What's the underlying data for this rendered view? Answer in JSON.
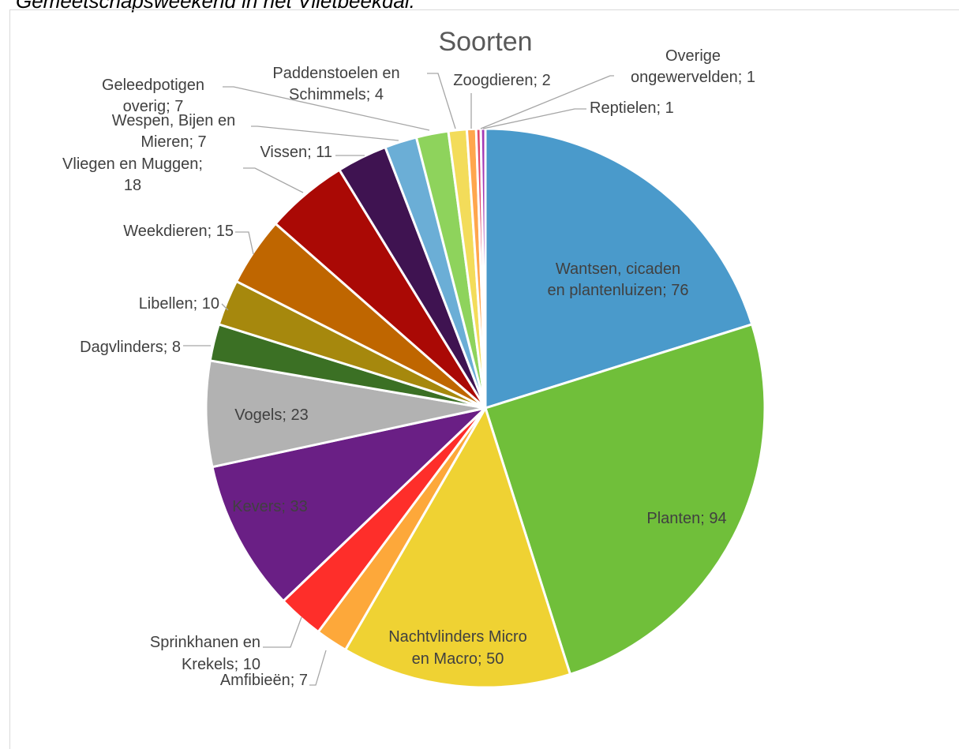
{
  "page": {
    "caption": "Gemeetschapsweekend in het Vlietbeekdal."
  },
  "chart_data": {
    "type": "pie",
    "title": "Soorten",
    "label_format": "{name}; {value}",
    "slices": [
      {
        "name": "Wantsen, cicaden en plantenluizen",
        "value": 76,
        "color": "#4a9acb"
      },
      {
        "name": "Planten",
        "value": 94,
        "color": "#70bf3a"
      },
      {
        "name": "Nachtvlinders Micro en Macro",
        "value": 50,
        "color": "#efd233"
      },
      {
        "name": "Amfibieën",
        "value": 7,
        "color": "#fda83a"
      },
      {
        "name": "Sprinkhanen en Krekels",
        "value": 10,
        "color": "#fe2e2a"
      },
      {
        "name": "Kevers",
        "value": 33,
        "color": "#6a1f85"
      },
      {
        "name": "Vogels",
        "value": 23,
        "color": "#b2b2b2"
      },
      {
        "name": "Dagvlinders",
        "value": 8,
        "color": "#3b7024"
      },
      {
        "name": "Libellen",
        "value": 10,
        "color": "#a6880d"
      },
      {
        "name": "Weekdieren",
        "value": 15,
        "color": "#bf6600"
      },
      {
        "name": "Vliegen en Muggen",
        "value": 18,
        "color": "#aa0905"
      },
      {
        "name": "Vissen",
        "value": 11,
        "color": "#3f1351"
      },
      {
        "name": "Wespen, Bijen en Mieren",
        "value": 7,
        "color": "#6baed6"
      },
      {
        "name": "Geleedpotigen overig",
        "value": 7,
        "color": "#8ed35c"
      },
      {
        "name": "Paddenstoelen en Schimmels",
        "value": 4,
        "color": "#f3dc5a"
      },
      {
        "name": "Zoogdieren",
        "value": 2,
        "color": "#ffa64d"
      },
      {
        "name": "Overige ongewervelden",
        "value": 1,
        "color": "#e24a6a"
      },
      {
        "name": "Reptielen",
        "value": 1,
        "color": "#a33ab5"
      }
    ]
  }
}
